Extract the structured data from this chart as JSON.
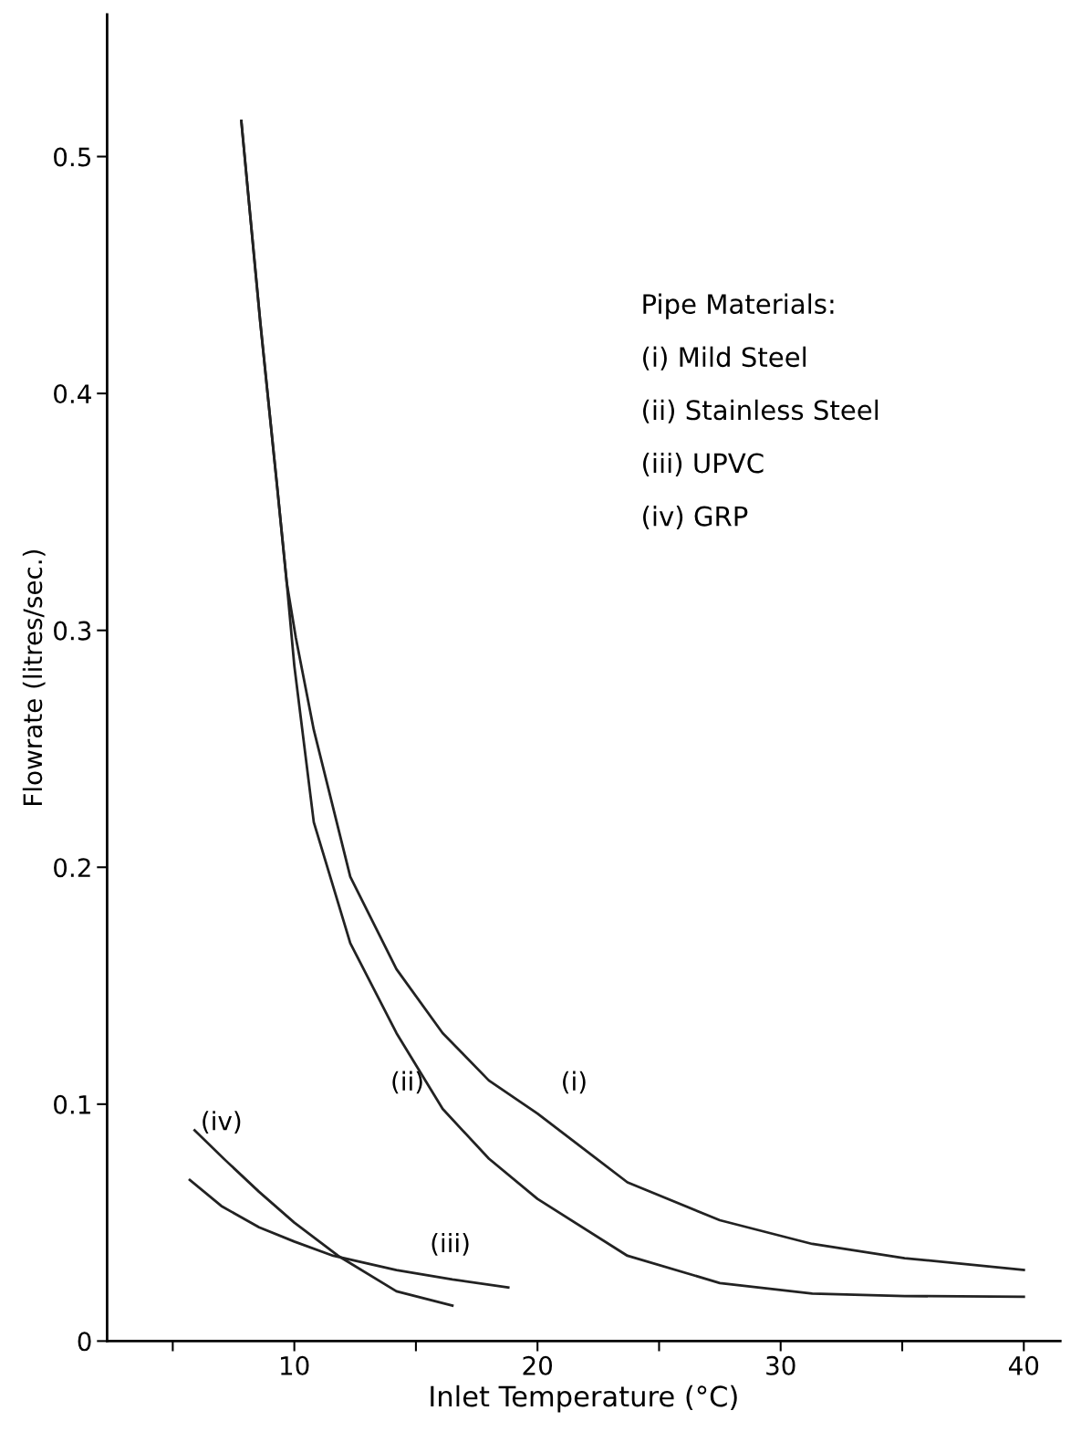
{
  "chart_data": {
    "type": "line",
    "xlabel": "Inlet Temperature (°C)",
    "ylabel": "Flowrate (litres/sec.)",
    "xlim": [
      2.3,
      41.5
    ],
    "ylim": [
      0,
      0.56
    ],
    "xticks": [
      {
        "value": 5,
        "label": null
      },
      10,
      {
        "value": 15,
        "label": null
      },
      20,
      {
        "value": 25,
        "label": null
      },
      30,
      {
        "value": 35,
        "label": null
      },
      40
    ],
    "yticks": [
      0,
      0.1,
      0.2,
      0.3,
      0.4,
      0.5
    ],
    "grid": false,
    "legend": false,
    "marker": "none",
    "line_style": "solid",
    "series": [
      {
        "color": "#222222",
        "x": [
          7.82,
          8.6,
          9.3,
          9.69,
          10.06,
          10.8,
          12.3,
          14.2,
          16.1,
          18.0,
          20.0,
          23.7,
          27.5,
          31.3,
          35.1,
          40.0
        ],
        "values": [
          0.515,
          0.43,
          0.36,
          0.32,
          0.297,
          0.258,
          0.196,
          0.157,
          0.13,
          0.11,
          0.096,
          0.067,
          0.051,
          0.041,
          0.035,
          0.03
        ]
      },
      {
        "color": "#222222",
        "x": [
          7.82,
          8.6,
          9.3,
          9.69,
          10.0,
          10.8,
          12.3,
          14.2,
          16.1,
          18.0,
          20.0,
          23.7,
          27.5,
          31.3,
          35.1,
          40.0
        ],
        "values": [
          0.515,
          0.43,
          0.36,
          0.32,
          0.285,
          0.219,
          0.168,
          0.13,
          0.098,
          0.077,
          0.06,
          0.036,
          0.0245,
          0.02,
          0.019,
          0.0187
        ]
      },
      {
        "color": "#222222",
        "x": [
          5.7,
          7.0,
          8.55,
          10.0,
          11.6,
          14.2,
          16.5,
          18.8
        ],
        "values": [
          0.068,
          0.057,
          0.048,
          0.042,
          0.036,
          0.03,
          0.026,
          0.0226
        ]
      },
      {
        "color": "#222222",
        "x": [
          5.9,
          7.2,
          8.55,
          10.0,
          11.8,
          14.2,
          16.5
        ],
        "values": [
          0.089,
          0.076,
          0.063,
          0.05,
          0.036,
          0.021,
          0.015
        ]
      }
    ],
    "annotations": [
      "(i)",
      "(ii)",
      "(iii)",
      "(iv)",
      "Pipe Materials:",
      "(i) Mild Steel",
      "(ii) Stainless Steel",
      "(iii) UPVC",
      "(iv) GRP"
    ]
  }
}
